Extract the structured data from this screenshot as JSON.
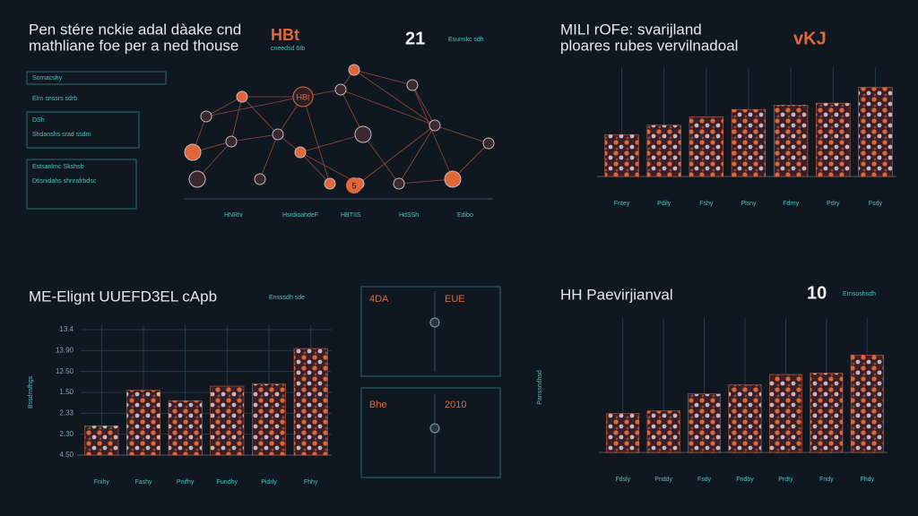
{
  "header": {
    "title_lines": [
      "Pen stére nckie adal dàake cnd",
      "mathliane foe per a ned thouse"
    ],
    "logo": "HBt",
    "logo_sub": "cneedsd 6tb",
    "badge": "21",
    "badge_note": "Esunskc sdh"
  },
  "network": {
    "node_labels": [
      "HBt",
      "5"
    ],
    "legend": [
      "HNRhi",
      "HsrdioahdeF",
      "HBTIIS",
      "HdSSh",
      "Edibo"
    ]
  },
  "side_panels": [
    {
      "heading": "Sornacshy",
      "text": "Elrn snssrs sdrb"
    },
    {
      "heading": "DSh",
      "text": "Shdanshs srad ssdm"
    },
    {
      "heading": "Estsanlrnc Skshsb",
      "text": "Dtisnidahs shnrafrbdsc"
    }
  ],
  "middle_panels": [
    {
      "left": "4DA",
      "right": "EUE"
    },
    {
      "left": "Bhe",
      "right": "2010"
    }
  ],
  "chart_data": [
    {
      "type": "bar",
      "title_lines": [
        "MILI rOFe: svarijland",
        "ploares rubes vervilnadoal"
      ],
      "badge": "vKJ",
      "categories": [
        "Fntey",
        "Pdily",
        "Fshy",
        "Plsny",
        "Fdrny",
        "Pdry",
        "Fsdy"
      ],
      "values": [
        40,
        49,
        57,
        64,
        68,
        70,
        85
      ],
      "color": "#e0673a",
      "ylim": [
        0,
        100
      ]
    },
    {
      "type": "bar",
      "title_lines": [
        "ME-Elignt UUEFD3EL cApb"
      ],
      "badge": "Ensssdh sde",
      "categories": [
        "Fnihy",
        "Fashy",
        "Pnifhy",
        "Fundhy",
        "Pidrly",
        "Fhhy"
      ],
      "values": [
        1.4,
        3.1,
        2.6,
        3.3,
        3.4,
        5.1
      ],
      "color": "#e0673a",
      "ylim": [
        0,
        6
      ],
      "yticks": [
        {
          "value": 0,
          "label": "4.50"
        },
        {
          "value": 1,
          "label": "2.30"
        },
        {
          "value": 2,
          "label": "2.33"
        },
        {
          "value": 3,
          "label": "1.50"
        },
        {
          "value": 4,
          "label": "12.50"
        },
        {
          "value": 5,
          "label": "13.90"
        },
        {
          "value": 6,
          "label": "13.4"
        }
      ],
      "grid": true,
      "ylabel": "Bssdnsfhgs"
    },
    {
      "type": "bar",
      "title_lines": [
        "HH Paevirjianval"
      ],
      "badge": "10",
      "badge_note": "Ernsoshsdh",
      "categories": [
        "Fdsly",
        "Pnddy",
        "Fsdy",
        "Fndby",
        "Prdty",
        "Fndy",
        "Fhdy"
      ],
      "values": [
        30,
        32,
        45,
        52,
        60,
        61,
        75
      ],
      "color": "#e0673a",
      "ylim": [
        0,
        100
      ],
      "ylabel": "Panssndhsd"
    }
  ]
}
